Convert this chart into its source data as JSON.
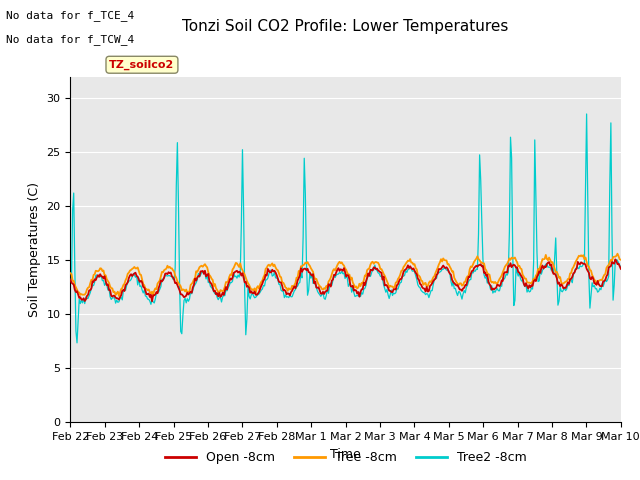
{
  "title": "Tonzi Soil CO2 Profile: Lower Temperatures",
  "xlabel": "Time",
  "ylabel": "Soil Temperatures (C)",
  "annotations": [
    "No data for f_TCE_4",
    "No data for f_TCW_4"
  ],
  "legend_label": "TZ_soilco2",
  "legend_entries": [
    "Open -8cm",
    "Tree -8cm",
    "Tree2 -8cm"
  ],
  "legend_colors": [
    "#cc0000",
    "#ff9900",
    "#00cccc"
  ],
  "line_colors": [
    "#cc0000",
    "#ff9900",
    "#00cccc"
  ],
  "ylim": [
    0,
    32
  ],
  "yticks": [
    0,
    5,
    10,
    15,
    20,
    25,
    30
  ],
  "background_color": "#e8e8e8",
  "figure_bg": "#ffffff",
  "title_fontsize": 11,
  "axis_fontsize": 9,
  "tick_fontsize": 8
}
